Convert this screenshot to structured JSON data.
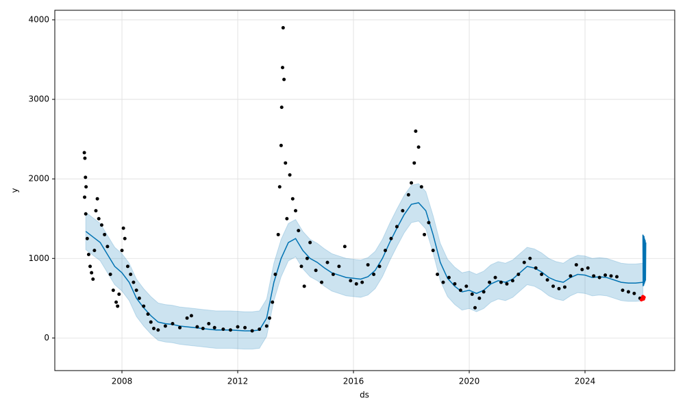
{
  "chart_data": {
    "type": "line",
    "xlabel": "ds",
    "ylabel": "y",
    "xlim": [
      2005.68,
      2027.1
    ],
    "ylim": [
      -410,
      4120
    ],
    "xticks": [
      2008,
      2012,
      2016,
      2020,
      2024
    ],
    "yticks": [
      0,
      1000,
      2000,
      3000,
      4000
    ],
    "grid": true,
    "series": [
      {
        "type": "band",
        "color": "#0072b2",
        "x": [
          2006.75,
          2007,
          2007.25,
          2007.5,
          2007.75,
          2008,
          2008.25,
          2008.5,
          2008.75,
          2009,
          2009.25,
          2009.5,
          2009.75,
          2010,
          2010.25,
          2010.5,
          2010.75,
          2011,
          2011.25,
          2011.5,
          2011.75,
          2012,
          2012.25,
          2012.5,
          2012.75,
          2013,
          2013.25,
          2013.5,
          2013.75,
          2014,
          2014.25,
          2014.5,
          2014.75,
          2015,
          2015.25,
          2015.5,
          2015.75,
          2016,
          2016.25,
          2016.5,
          2016.75,
          2017,
          2017.25,
          2017.5,
          2017.75,
          2018,
          2018.25,
          2018.5,
          2018.75,
          2019,
          2019.25,
          2019.5,
          2019.75,
          2020,
          2020.25,
          2020.5,
          2020.75,
          2021,
          2021.25,
          2021.5,
          2021.75,
          2022,
          2022.25,
          2022.5,
          2022.75,
          2023,
          2023.25,
          2023.5,
          2023.75,
          2024,
          2024.25,
          2024.5,
          2024.75,
          2025,
          2025.25,
          2025.5,
          2025.75,
          2026
        ],
        "upper": [
          1580,
          1510,
          1440,
          1290,
          1140,
          1060,
          940,
          740,
          620,
          520,
          440,
          420,
          410,
          390,
          380,
          370,
          360,
          350,
          340,
          340,
          340,
          335,
          330,
          330,
          340,
          490,
          940,
          1240,
          1440,
          1490,
          1340,
          1240,
          1190,
          1120,
          1060,
          1030,
          1000,
          990,
          980,
          1010,
          1090,
          1240,
          1440,
          1620,
          1790,
          1920,
          1940,
          1840,
          1540,
          1190,
          990,
          890,
          820,
          840,
          800,
          840,
          920,
          960,
          940,
          980,
          1060,
          1140,
          1120,
          1070,
          1000,
          960,
          940,
          1000,
          1040,
          1030,
          1000,
          1010,
          1000,
          970,
          940,
          930,
          930,
          940
        ],
        "lower": [
          1110,
          1040,
          970,
          820,
          670,
          590,
          470,
          270,
          150,
          50,
          -30,
          -50,
          -60,
          -80,
          -90,
          -100,
          -110,
          -120,
          -130,
          -130,
          -130,
          -135,
          -140,
          -140,
          -130,
          20,
          470,
          770,
          970,
          1020,
          870,
          770,
          720,
          650,
          590,
          560,
          530,
          520,
          510,
          540,
          620,
          770,
          970,
          1150,
          1320,
          1450,
          1470,
          1370,
          1070,
          720,
          520,
          420,
          350,
          370,
          330,
          370,
          450,
          490,
          470,
          510,
          590,
          670,
          650,
          600,
          530,
          490,
          470,
          530,
          570,
          560,
          530,
          540,
          530,
          500,
          470,
          460,
          460,
          470
        ]
      },
      {
        "type": "line",
        "color": "#0072b2",
        "x": [
          2006.75,
          2007,
          2007.25,
          2007.5,
          2007.75,
          2008,
          2008.25,
          2008.5,
          2008.75,
          2009,
          2009.25,
          2009.5,
          2009.75,
          2010,
          2010.25,
          2010.5,
          2010.75,
          2011,
          2011.25,
          2011.5,
          2011.75,
          2012,
          2012.25,
          2012.5,
          2012.75,
          2013,
          2013.25,
          2013.5,
          2013.75,
          2014,
          2014.25,
          2014.5,
          2014.75,
          2015,
          2015.25,
          2015.5,
          2015.75,
          2016,
          2016.25,
          2016.5,
          2016.75,
          2017,
          2017.25,
          2017.5,
          2017.75,
          2018,
          2018.25,
          2018.5,
          2018.75,
          2019,
          2019.25,
          2019.5,
          2019.75,
          2020,
          2020.25,
          2020.5,
          2020.75,
          2021,
          2021.25,
          2021.5,
          2021.75,
          2022,
          2022.25,
          2022.5,
          2022.75,
          2023,
          2023.25,
          2023.5,
          2023.75,
          2024,
          2024.25,
          2024.5,
          2024.75,
          2025,
          2025.25,
          2025.5,
          2025.75,
          2026
        ],
        "values": [
          1340,
          1270,
          1200,
          1050,
          900,
          820,
          700,
          500,
          380,
          280,
          200,
          180,
          170,
          150,
          140,
          130,
          120,
          110,
          100,
          100,
          100,
          95,
          90,
          90,
          100,
          250,
          700,
          1000,
          1200,
          1250,
          1100,
          1000,
          950,
          880,
          820,
          790,
          760,
          750,
          740,
          770,
          850,
          1000,
          1200,
          1380,
          1550,
          1680,
          1700,
          1600,
          1300,
          950,
          750,
          650,
          580,
          600,
          560,
          600,
          680,
          720,
          700,
          740,
          820,
          900,
          880,
          830,
          760,
          720,
          700,
          760,
          800,
          790,
          760,
          770,
          760,
          730,
          700,
          690,
          690,
          700
        ]
      },
      {
        "type": "line",
        "color": "#0072b2",
        "x": [
          2026.0,
          2026.01,
          2026.02,
          2026.03,
          2026.04,
          2026.05,
          2026.06,
          2026.07,
          2026.08,
          2026.09,
          2026.1
        ],
        "values": [
          1300,
          650,
          1290,
          660,
          1280,
          680,
          1250,
          700,
          1230,
          720,
          1200
        ]
      },
      {
        "type": "scatter",
        "color": "#000000",
        "x": [
          2006.7,
          2006.72,
          2006.74,
          2006.76,
          2006.71,
          2006.75,
          2006.8,
          2006.85,
          2006.9,
          2006.95,
          2007.0,
          2007.05,
          2007.1,
          2007.15,
          2007.2,
          2007.3,
          2007.4,
          2007.5,
          2007.6,
          2007.7,
          2007.8,
          2007.85,
          2007.9,
          2008.0,
          2008.05,
          2008.1,
          2008.2,
          2008.3,
          2008.4,
          2008.5,
          2008.6,
          2008.75,
          2008.9,
          2009.0,
          2009.1,
          2009.25,
          2009.5,
          2009.75,
          2010.0,
          2010.25,
          2010.4,
          2010.6,
          2010.8,
          2011.0,
          2011.2,
          2011.5,
          2011.75,
          2012.0,
          2012.25,
          2012.5,
          2012.75,
          2013.0,
          2013.1,
          2013.2,
          2013.3,
          2013.4,
          2013.45,
          2013.5,
          2013.52,
          2013.55,
          2013.57,
          2013.6,
          2013.65,
          2013.7,
          2013.8,
          2013.9,
          2014.0,
          2014.1,
          2014.2,
          2014.3,
          2014.4,
          2014.5,
          2014.7,
          2014.9,
          2015.1,
          2015.3,
          2015.5,
          2015.7,
          2015.9,
          2016.1,
          2016.3,
          2016.5,
          2016.7,
          2016.9,
          2017.1,
          2017.3,
          2017.5,
          2017.7,
          2017.9,
          2018.0,
          2018.1,
          2018.15,
          2018.25,
          2018.35,
          2018.45,
          2018.6,
          2018.75,
          2018.9,
          2019.1,
          2019.3,
          2019.5,
          2019.7,
          2019.9,
          2020.1,
          2020.2,
          2020.35,
          2020.5,
          2020.7,
          2020.9,
          2021.1,
          2021.3,
          2021.5,
          2021.7,
          2021.9,
          2022.1,
          2022.3,
          2022.5,
          2022.7,
          2022.9,
          2023.1,
          2023.3,
          2023.5,
          2023.7,
          2023.9,
          2024.1,
          2024.3,
          2024.5,
          2024.7,
          2024.9,
          2025.1,
          2025.3,
          2025.5,
          2025.7,
          2025.9
        ],
        "values": [
          2330,
          2260,
          2020,
          1900,
          1770,
          1560,
          1250,
          1050,
          900,
          820,
          740,
          1100,
          1600,
          1750,
          1500,
          1420,
          1300,
          1150,
          800,
          600,
          450,
          400,
          550,
          1100,
          1380,
          1250,
          900,
          800,
          700,
          600,
          500,
          400,
          300,
          200,
          120,
          100,
          150,
          180,
          130,
          250,
          280,
          140,
          120,
          180,
          130,
          110,
          100,
          140,
          130,
          90,
          110,
          150,
          250,
          450,
          800,
          1300,
          1900,
          2420,
          2900,
          3400,
          3900,
          3250,
          2200,
          1500,
          2050,
          1750,
          1600,
          1350,
          900,
          650,
          1000,
          1200,
          850,
          700,
          950,
          800,
          900,
          1150,
          720,
          680,
          700,
          920,
          800,
          900,
          1100,
          1250,
          1400,
          1600,
          1800,
          1950,
          2200,
          2600,
          2400,
          1900,
          1300,
          1450,
          1100,
          800,
          700,
          760,
          680,
          600,
          650,
          550,
          380,
          500,
          580,
          700,
          760,
          700,
          680,
          720,
          800,
          950,
          1000,
          880,
          800,
          730,
          650,
          620,
          640,
          780,
          920,
          860,
          880,
          780,
          760,
          790,
          780,
          770,
          600,
          580,
          560,
          500
        ]
      },
      {
        "type": "scatter",
        "color": "#ff0000",
        "x": [
          2025.95,
          2025.98,
          2026.0,
          2026.02,
          2026.04
        ],
        "values": [
          480,
          500,
          520,
          490,
          510
        ]
      }
    ]
  }
}
